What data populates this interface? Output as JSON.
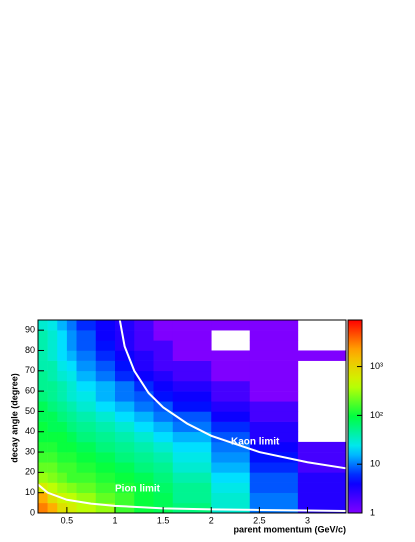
{
  "chart_data": {
    "type": "heatmap",
    "xlabel": "parent momentum (GeV/c)",
    "ylabel": "decay angle (degree)",
    "xbins": [
      0.2,
      0.3,
      0.4,
      0.5,
      0.6,
      0.8,
      1.0,
      1.2,
      1.4,
      1.6,
      2.0,
      2.4,
      2.9,
      3.4
    ],
    "ybins": [
      0,
      5,
      10,
      15,
      20,
      25,
      30,
      35,
      40,
      45,
      50,
      55,
      60,
      65,
      70,
      75,
      80,
      85,
      90,
      95
    ],
    "values": [
      [
        3000,
        2000,
        800,
        600,
        400,
        300,
        150,
        100,
        80,
        60,
        30,
        10,
        3
      ],
      [
        2000,
        800,
        500,
        400,
        300,
        200,
        150,
        100,
        80,
        50,
        30,
        10,
        3
      ],
      [
        600,
        400,
        300,
        250,
        200,
        150,
        120,
        100,
        70,
        50,
        25,
        8,
        3
      ],
      [
        300,
        250,
        200,
        150,
        150,
        120,
        100,
        80,
        60,
        40,
        20,
        8,
        3
      ],
      [
        200,
        200,
        150,
        150,
        120,
        100,
        80,
        60,
        50,
        30,
        15,
        6,
        2
      ],
      [
        150,
        150,
        120,
        120,
        100,
        80,
        60,
        50,
        40,
        25,
        12,
        5,
        2
      ],
      [
        120,
        120,
        100,
        100,
        80,
        60,
        50,
        40,
        30,
        20,
        10,
        4,
        2
      ],
      [
        100,
        100,
        100,
        80,
        60,
        50,
        40,
        30,
        20,
        15,
        8,
        3,
        null
      ],
      [
        100,
        80,
        80,
        60,
        50,
        40,
        30,
        20,
        15,
        10,
        6,
        3,
        null
      ],
      [
        80,
        80,
        60,
        50,
        40,
        30,
        20,
        15,
        10,
        8,
        4,
        2,
        null
      ],
      [
        80,
        60,
        50,
        40,
        30,
        20,
        15,
        10,
        8,
        5,
        3,
        2,
        null
      ],
      [
        60,
        50,
        40,
        30,
        25,
        15,
        10,
        8,
        5,
        4,
        2,
        1,
        null
      ],
      [
        50,
        50,
        40,
        30,
        20,
        15,
        10,
        6,
        4,
        3,
        2,
        1,
        null
      ],
      [
        50,
        40,
        30,
        25,
        15,
        10,
        6,
        4,
        3,
        2,
        1,
        1,
        null
      ],
      [
        40,
        40,
        25,
        20,
        12,
        8,
        5,
        3,
        2,
        2,
        1,
        1,
        null
      ],
      [
        40,
        30,
        20,
        15,
        10,
        6,
        4,
        3,
        2,
        1,
        1,
        1,
        1
      ],
      [
        40,
        30,
        20,
        12,
        8,
        5,
        3,
        2,
        2,
        1,
        null,
        1,
        null
      ],
      [
        40,
        30,
        20,
        12,
        8,
        4,
        3,
        2,
        1,
        1,
        null,
        1,
        null
      ],
      [
        30,
        25,
        15,
        10,
        6,
        4,
        3,
        2,
        1,
        1,
        1,
        1,
        null
      ]
    ],
    "xlim": [
      0.2,
      3.4
    ],
    "ylim": [
      0,
      95
    ],
    "zlim": [
      1,
      9000
    ],
    "zlog": true,
    "xticks": [
      0.5,
      1,
      1.5,
      2,
      2.5,
      3
    ],
    "yticks": [
      0,
      10,
      20,
      30,
      40,
      50,
      60,
      70,
      80,
      90
    ],
    "zticks": [
      1,
      10,
      {
        "value": 100,
        "label": "10²"
      },
      {
        "value": 1000,
        "label": "10³"
      }
    ],
    "colormap": [
      "#7f00ff",
      "#0000ff",
      "#00e5ff",
      "#00ff40",
      "#c8ff00",
      "#ffb000",
      "#ff0000"
    ],
    "curves": [
      {
        "name": "Pion limit",
        "color": "#ffffff",
        "x": [
          0.2,
          0.3,
          0.5,
          0.75,
          1.0,
          1.5,
          2.0,
          2.5,
          3.0,
          3.4
        ],
        "y": [
          14,
          10,
          6.5,
          4.6,
          3.5,
          2.3,
          1.8,
          1.5,
          1.2,
          1
        ]
      },
      {
        "name": "Kaon limit",
        "color": "#ffffff",
        "x": [
          1.05,
          1.1,
          1.2,
          1.35,
          1.5,
          1.75,
          2.0,
          2.5,
          3.0,
          3.4
        ],
        "y": [
          95,
          82,
          70,
          59,
          52,
          44,
          38,
          30,
          25,
          22
        ]
      }
    ]
  }
}
